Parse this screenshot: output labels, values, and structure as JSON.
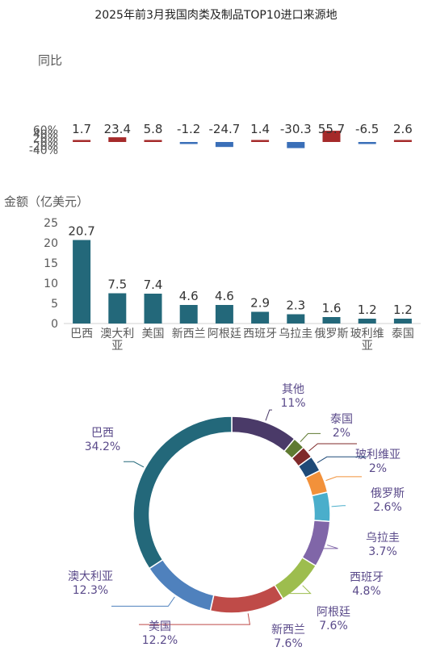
{
  "title": "2025年前3月我国肉类及制品TOP10进口来源地",
  "chart_data": [
    {
      "type": "bar",
      "ylabel": "同比",
      "yticks": [
        "60%",
        "40%",
        "20%",
        "0%",
        "-20%",
        "-40%"
      ],
      "ylim": [
        -40,
        60
      ],
      "categories": [
        "巴西",
        "澳大利亚",
        "美国",
        "新西兰",
        "阿根廷",
        "西班牙",
        "乌拉圭",
        "俄罗斯",
        "玻利维亚",
        "泰国"
      ],
      "values": [
        1.7,
        23.4,
        5.8,
        -1.2,
        -24.7,
        1.4,
        -30.3,
        55.7,
        -6.5,
        2.6
      ],
      "value_labels": [
        "1.7",
        "23.4",
        "5.8",
        "-1.2",
        "-24.7",
        "1.4",
        "-30.3",
        "55.7",
        "-6.5",
        "2.6"
      ],
      "colors": {
        "positive": "#a52a2a",
        "negative": "#3a6fb8"
      },
      "grid": false
    },
    {
      "type": "bar",
      "ylabel": "金额（亿美元）",
      "yticks": [
        "25",
        "20",
        "15",
        "10",
        "5",
        "0"
      ],
      "ylim": [
        0,
        25
      ],
      "categories": [
        "巴西",
        "澳大利亚",
        "美国",
        "新西兰",
        "阿根廷",
        "西班牙",
        "乌拉圭",
        "俄罗斯",
        "玻利维亚",
        "泰国"
      ],
      "category_labels": [
        [
          "巴西"
        ],
        [
          "澳大利",
          "亚"
        ],
        [
          "美国"
        ],
        [
          "新西兰"
        ],
        [
          "阿根廷"
        ],
        [
          "西班牙"
        ],
        [
          "乌拉圭"
        ],
        [
          "俄罗斯"
        ],
        [
          "玻利维",
          "亚"
        ],
        [
          "泰国"
        ]
      ],
      "values": [
        20.7,
        7.5,
        7.4,
        4.6,
        4.6,
        2.9,
        2.3,
        1.6,
        1.2,
        1.2
      ],
      "value_labels": [
        "20.7",
        "7.5",
        "7.4",
        "4.6",
        "4.6",
        "2.9",
        "2.3",
        "1.6",
        "1.2",
        "1.2"
      ],
      "color": "#23687a",
      "grid": false
    },
    {
      "type": "pie",
      "donut": true,
      "slices": [
        {
          "name": "其他",
          "pct_label": "11%",
          "value": 11,
          "color": "#4a3a68"
        },
        {
          "name": "泰国",
          "pct_label": "2%",
          "value": 2,
          "color": "#5f7a31"
        },
        {
          "name": "玻利维亚",
          "pct_label": "2%",
          "value": 2,
          "color": "#7f2a2a"
        },
        {
          "name": "俄罗斯",
          "pct_label": "2.6%",
          "value": 2.6,
          "color": "#1e4a78"
        },
        {
          "name": "乌拉圭",
          "pct_label": "3.7%",
          "value": 3.7,
          "color": "#f2913a"
        },
        {
          "name": "西班牙",
          "pct_label": "4.8%",
          "value": 4.8,
          "color": "#4aaecb"
        },
        {
          "name": "阿根廷",
          "pct_label": "7.6%",
          "value": 7.6,
          "color": "#8066a8"
        },
        {
          "name": "新西兰",
          "pct_label": "7.6%",
          "value": 7.6,
          "color": "#9dbd4e"
        },
        {
          "name": "美国",
          "pct_label": "12.2%",
          "value": 12.2,
          "color": "#bf4b48"
        },
        {
          "name": "澳大利亚",
          "pct_label": "12.3%",
          "value": 12.3,
          "color": "#4f81bd"
        },
        {
          "name": "巴西",
          "pct_label": "34.2%",
          "value": 34.2,
          "color": "#23687a"
        }
      ]
    }
  ]
}
